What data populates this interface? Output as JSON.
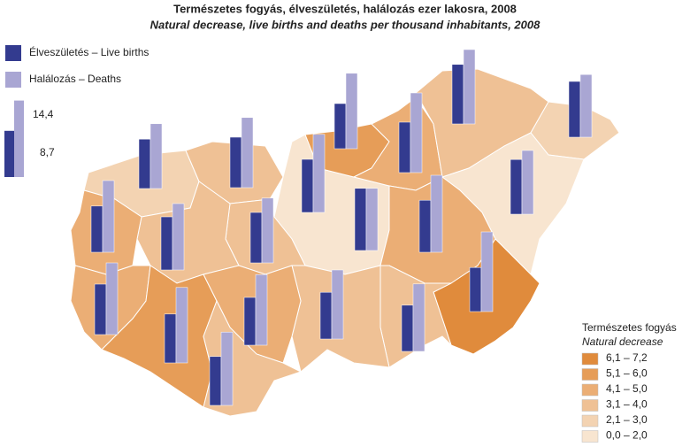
{
  "chart_data": {
    "type": "map-bars",
    "title": "Természetes fogyás, élveszületés, halálozás ezer lakosra, 2008",
    "subtitle": "Natural decrease, live births and deaths per thousand inhabitants, 2008",
    "categories": [
      null,
      null,
      null,
      null,
      null,
      null,
      null,
      null,
      null,
      null,
      null,
      null,
      null,
      null,
      null,
      null,
      null,
      null,
      null,
      null
    ],
    "series": [
      {
        "name": "Élveszületés – Live births",
        "color": "#333b8f",
        "values": [
          8.7,
          9.3,
          9.5,
          10.0,
          8.5,
          9.5,
          11.2,
          10.5,
          10.3,
          9.8,
          11.7,
          8.3,
          8.7,
          8.8,
          9.5,
          10.0,
          9.5,
          9.2,
          9.0,
          9.2
        ]
      },
      {
        "name": "Halálozás – Deaths",
        "color": "#a9a6d3",
        "values": [
          13.5,
          12.2,
          13.2,
          14.7,
          14.2,
          15.0,
          14.0,
          11.8,
          12.0,
          14.5,
          11.7,
          15.0,
          12.7,
          13.0,
          12.2,
          12.5,
          13.5,
          14.2,
          13.3,
          13.8
        ]
      }
    ],
    "scale_key": [
      {
        "value": 14.4,
        "label": "14,4"
      },
      {
        "value": 8.7,
        "label": "8,7"
      }
    ],
    "classes_title": "Természetes fogyás",
    "classes_subtitle": "Natural decrease",
    "classes": [
      {
        "label": "6,1 – 7,2",
        "color": "#e08b3c"
      },
      {
        "label": "5,1 – 6,0",
        "color": "#e69d58"
      },
      {
        "label": "4,1 – 5,0",
        "color": "#ebae75"
      },
      {
        "label": "3,1 – 4,0",
        "color": "#efc195"
      },
      {
        "label": "2,1 – 3,0",
        "color": "#f3d3b2"
      },
      {
        "label": "0,0 – 2,0",
        "color": "#f8e5d0"
      }
    ]
  }
}
